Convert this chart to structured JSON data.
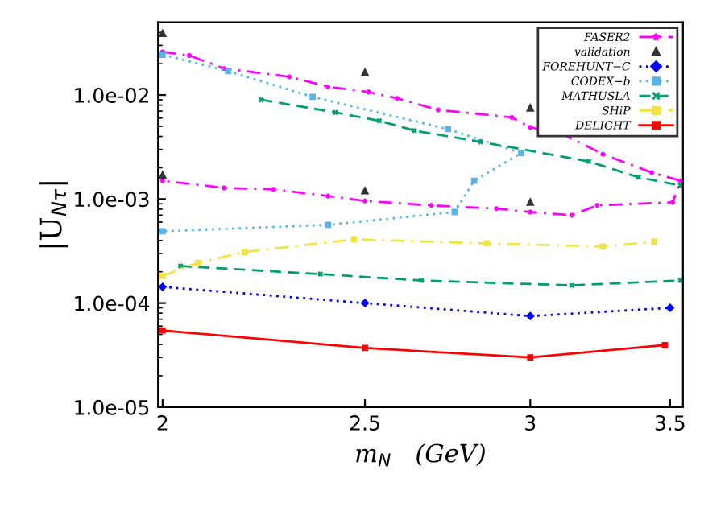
{
  "chart_data": {
    "type": "line",
    "xlabel": "m$_{N}$   (GeV)",
    "ylabel": "|U$_{Nτ}$|",
    "log": "xy",
    "xlim": [
      1.99,
      3.55
    ],
    "ylim": [
      1e-05,
      0.05
    ],
    "xticks": [
      2,
      2.5,
      3,
      3.5
    ],
    "yticks": [
      {
        "value": 1e-05,
        "label": "1.0e-05"
      },
      {
        "value": 0.0001,
        "label": "1.0e-04"
      },
      {
        "value": 0.001,
        "label": "1.0e-03"
      },
      {
        "value": 0.01,
        "label": "1.0e-02"
      }
    ],
    "grid": false,
    "legend": "top right",
    "series": [
      {
        "name": "FASER2",
        "color": "#ff00ff",
        "line_style": "dashdot",
        "marker": "star",
        "x": [
          2.0,
          2.06,
          2.14,
          2.3,
          2.4,
          2.51,
          2.59,
          2.71,
          2.94,
          3.0,
          3.11,
          3.25,
          3.43,
          3.54,
          3.51,
          3.23,
          3.14,
          3.0,
          2.89,
          2.69,
          2.5,
          2.4,
          2.26,
          2.14,
          2.0
        ],
        "values": [
          0.026,
          0.024,
          0.018,
          0.015,
          0.012,
          0.0107,
          0.0093,
          0.0072,
          0.0061,
          0.0049,
          0.0042,
          0.0027,
          0.0018,
          0.0015,
          0.00093,
          0.00087,
          0.0007,
          0.00075,
          0.00081,
          0.00087,
          0.00096,
          0.00107,
          0.00124,
          0.00128,
          0.0015
        ]
      },
      {
        "name": "validation",
        "type": "scatter",
        "color": "#333333",
        "marker": "triangle",
        "x": [
          2.0,
          2.0,
          2.5,
          2.5,
          3.0,
          3.0
        ],
        "values": [
          0.039,
          0.0017,
          0.0165,
          0.0012,
          0.0075,
          0.00093
        ]
      },
      {
        "name": "FOREHUNT−C",
        "color": "#0000ff",
        "line_style": "dotted",
        "marker": "diamond",
        "x": [
          2.0,
          2.5,
          3.0,
          3.5
        ],
        "values": [
          0.000143,
          0.0001,
          7.5e-05,
          9e-05
        ]
      },
      {
        "name": "CODEX−b",
        "color": "#56b4e9",
        "line_style": "dotted",
        "marker": "square",
        "x": [
          2.0,
          2.15,
          2.36,
          2.74,
          2.97,
          2.82,
          2.76,
          2.4,
          2.0
        ],
        "values": [
          0.0244,
          0.017,
          0.0096,
          0.0047,
          0.00277,
          0.0015,
          0.00075,
          0.000565,
          0.00049
        ]
      },
      {
        "name": "MATHUSLA",
        "color": "#009e73",
        "line_style": "dashed",
        "marker": "cross",
        "x": [
          2.23,
          2.42,
          2.54,
          2.64,
          2.84,
          3.2,
          3.38,
          3.54,
          null,
          2.04,
          2.38,
          2.66,
          3.14,
          3.54
        ],
        "values": [
          0.009,
          0.0068,
          0.00565,
          0.00455,
          0.00355,
          0.0023,
          0.00162,
          0.00135,
          null,
          0.000227,
          0.00019,
          0.000165,
          0.000148,
          0.000165
        ]
      },
      {
        "name": "SHiP",
        "color": "#f0e442",
        "line_style": "dashdot",
        "marker": "square",
        "x": [
          2.0,
          2.08,
          2.19,
          2.47,
          2.86,
          3.25,
          3.44
        ],
        "values": [
          0.000183,
          0.000244,
          0.00031,
          0.00041,
          0.000375,
          0.00035,
          0.00039
        ]
      },
      {
        "name": "DELIGHT",
        "color": "#ff0000",
        "line_style": "solid",
        "marker": "square",
        "x": [
          2.0,
          2.5,
          3.0,
          3.48
        ],
        "values": [
          5.45e-05,
          3.7e-05,
          3e-05,
          3.95e-05
        ]
      }
    ]
  }
}
